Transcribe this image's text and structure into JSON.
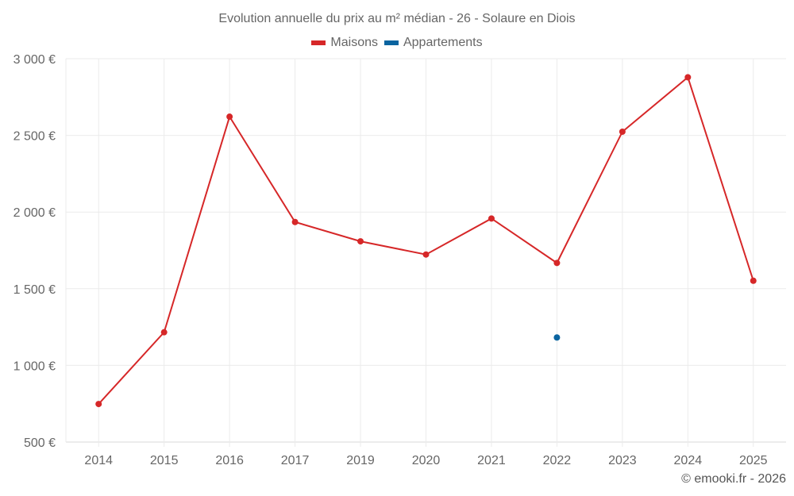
{
  "chart_data": {
    "type": "line",
    "title": "Evolution annuelle du prix au m² médian - 26 - Solaure en Diois",
    "xlabel": "",
    "ylabel": "",
    "categories": [
      "2014",
      "2015",
      "2016",
      "2017",
      "2019",
      "2020",
      "2021",
      "2022",
      "2023",
      "2024",
      "2025"
    ],
    "series": [
      {
        "name": "Maisons",
        "color": "#d62728",
        "values": [
          748,
          1216,
          2622,
          1935,
          1809,
          1723,
          1958,
          1668,
          2524,
          2879,
          1552
        ]
      },
      {
        "name": "Appartements",
        "color": "#0a64a0",
        "values": [
          null,
          null,
          null,
          null,
          null,
          null,
          null,
          1182,
          null,
          null,
          null
        ]
      }
    ],
    "ylim": [
      500,
      3000
    ],
    "yticks": [
      500,
      1000,
      1500,
      2000,
      2500,
      3000
    ],
    "ytick_labels": [
      "500 €",
      "1 000 €",
      "1 500 €",
      "2 000 €",
      "2 500 €",
      "3 000 €"
    ],
    "grid": true,
    "legend_position": "top"
  },
  "credit": "© emooki.fr - 2026"
}
